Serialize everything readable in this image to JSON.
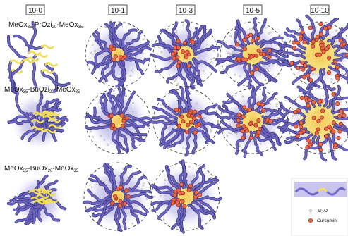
{
  "headers": [
    "10-0",
    "10-1",
    "10-3",
    "10-5",
    "10-10"
  ],
  "rows": [
    {
      "label": [
        "MeOx",
        "35",
        "-PrOzi",
        "20",
        "-MeOx",
        "35"
      ]
    },
    {
      "label": [
        "MeOx",
        "35",
        "-BuOzi",
        "20",
        "-MeOx",
        "35"
      ]
    },
    {
      "label": [
        "MeOx",
        "35",
        "-BuOx",
        "20",
        "-MeOx",
        "35"
      ]
    }
  ],
  "legend": {
    "solvent": [
      "D",
      "2",
      "O"
    ],
    "drug": "Curcumin"
  }
}
